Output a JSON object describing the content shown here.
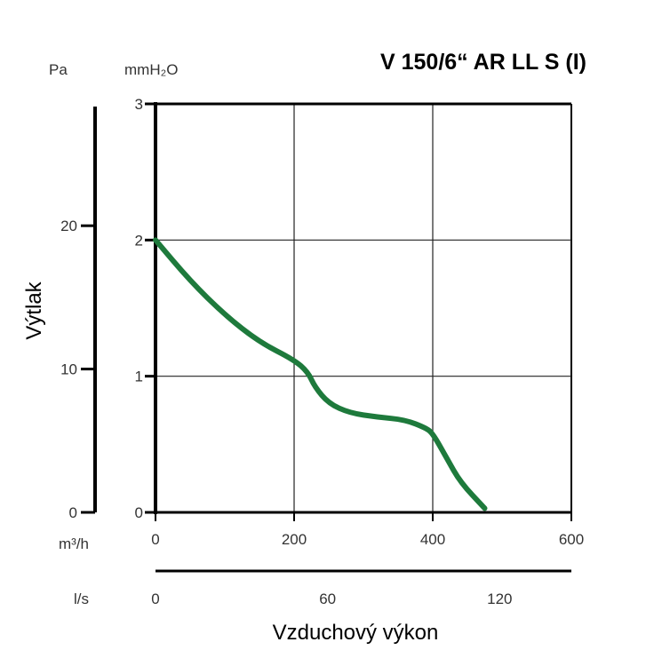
{
  "chart_data": {
    "type": "line",
    "title": "V 150/6“ AR LL S (I)",
    "xlabel": "Vzduchový výkon",
    "ylabel": "Výtlak",
    "x_unit": "m³/h",
    "x2_unit": "l/s",
    "y_unit": "mmH₂O",
    "y2_unit": "Pa",
    "xlim": [
      0,
      600
    ],
    "ylim": [
      0,
      3
    ],
    "x2lim": [
      0,
      145
    ],
    "y2lim": [
      0,
      28.5
    ],
    "x_ticks": [
      "0",
      "200",
      "400",
      "600"
    ],
    "x_tick_values": [
      0,
      200,
      400,
      600
    ],
    "x2_ticks": [
      "0",
      "60",
      "120"
    ],
    "x2_tick_values": [
      0,
      60,
      120
    ],
    "y_ticks": [
      "0",
      "1",
      "2",
      "3"
    ],
    "y_tick_values": [
      0,
      1,
      2,
      3
    ],
    "y2_ticks": [
      "0",
      "10",
      "20"
    ],
    "y2_tick_values": [
      0,
      10,
      20
    ],
    "grid": true,
    "line_color": "#1e7a3c",
    "series": [
      {
        "name": "V 150/6“ AR LL S (I)",
        "x": [
          0,
          50,
          100,
          150,
          200,
          220,
          230,
          250,
          280,
          320,
          360,
          390,
          400,
          420,
          440,
          475
        ],
        "y": [
          2.0,
          1.7,
          1.45,
          1.25,
          1.12,
          1.03,
          0.92,
          0.8,
          0.73,
          0.7,
          0.68,
          0.62,
          0.58,
          0.4,
          0.22,
          0.03
        ]
      }
    ]
  }
}
